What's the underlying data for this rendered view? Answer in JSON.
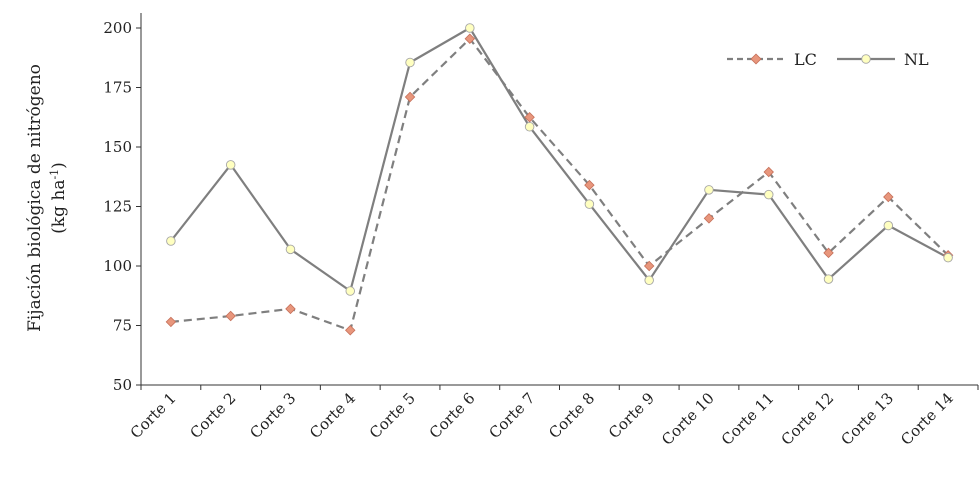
{
  "chart_data": {
    "type": "line",
    "title": "",
    "xlabel": "",
    "ylabel_line1": "Fijación biológica de nitrógeno",
    "ylabel_line2_main": "(kg ha",
    "ylabel_line2_sup": "-1",
    "ylabel_line2_end": ")",
    "ylim": [
      50,
      200
    ],
    "yticks": [
      50,
      75,
      100,
      125,
      150,
      175,
      200
    ],
    "grid": false,
    "legend_position": "top-right",
    "categories": [
      "Corte 1",
      "Corte 2",
      "Corte 3",
      "Corte 4",
      "Corte 5",
      "Corte 6",
      "Corte 7",
      "Corte 8",
      "Corte 9",
      "Corte 10",
      "Corte 11",
      "Corte 12",
      "Corte 13",
      "Corte 14"
    ],
    "series": [
      {
        "name": "LC",
        "style": "dashed",
        "marker": "diamond",
        "line_color": "#7f7f7f",
        "marker_color": "#e8967c",
        "values": [
          76.5,
          79,
          82,
          73,
          171,
          195.5,
          162.5,
          134,
          100,
          120,
          139.5,
          105.5,
          129,
          104.5
        ]
      },
      {
        "name": "NL",
        "style": "solid",
        "marker": "circle",
        "line_color": "#7f7f7f",
        "marker_color": "#ffffc0",
        "values": [
          110.5,
          142.5,
          107,
          89.5,
          185.5,
          200,
          158.5,
          126,
          94,
          132,
          130,
          94.5,
          117,
          103.5
        ]
      }
    ]
  }
}
